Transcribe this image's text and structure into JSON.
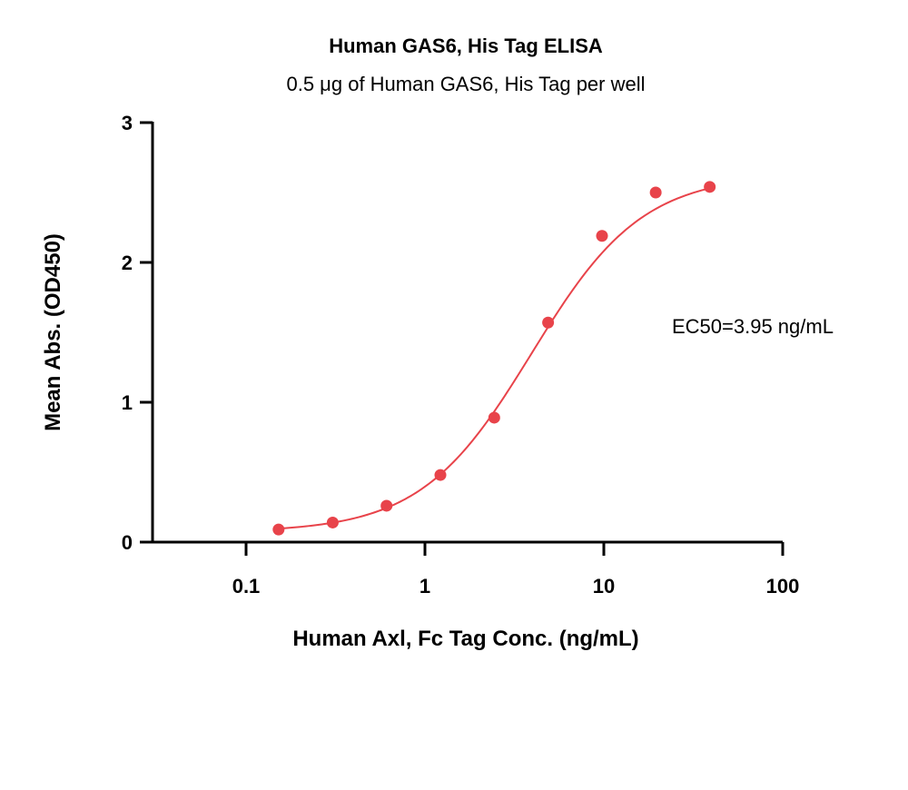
{
  "chart_data": {
    "type": "scatter",
    "title": "Human GAS6, His Tag ELISA",
    "subtitle": "0.5 μg of Human GAS6, His Tag per well",
    "xlabel": "Human Axl, Fc Tag Conc. (ng/mL)",
    "ylabel": "Mean Abs. (OD450)",
    "xscale": "log",
    "xlim": [
      0.03,
      100
    ],
    "ylim": [
      0,
      3
    ],
    "x_ticks": [
      0.1,
      1,
      10,
      100
    ],
    "x_tick_labels": [
      "0.1",
      "1",
      "10",
      "100"
    ],
    "y_ticks": [
      0,
      1,
      2,
      3
    ],
    "y_tick_labels": [
      "0",
      "1",
      "2",
      "3"
    ],
    "grid": false,
    "annotation": "EC50=3.95 ng/mL",
    "series": [
      {
        "color": "#e8434a",
        "x": [
          0.152,
          0.305,
          0.61,
          1.22,
          2.44,
          4.88,
          9.77,
          19.5,
          39.1
        ],
        "values": [
          0.09,
          0.14,
          0.26,
          0.48,
          0.89,
          1.57,
          2.19,
          2.5,
          2.54
        ],
        "fit": {
          "model": "4PL",
          "bottom": 0.07,
          "top": 2.63,
          "ec50": 3.95,
          "hill": 1.4,
          "x_range": [
            0.152,
            39.1
          ]
        }
      }
    ]
  }
}
